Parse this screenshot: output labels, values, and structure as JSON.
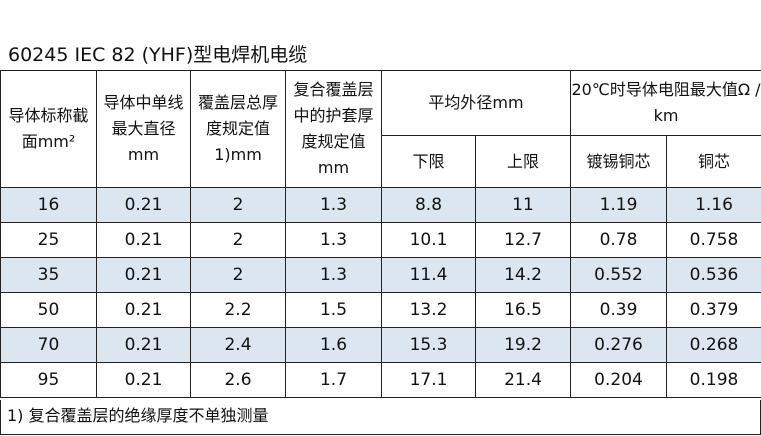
{
  "title": "60245 IEC 82 (YHF)型电焊机电缆",
  "table": {
    "headers": {
      "col1": "导体标称截面mm²",
      "col2": "导体中单线最大直径mm",
      "col3": "覆盖层总厚度规定值1)mm",
      "col4": "复合覆盖层中的护套厚度规定值mm",
      "group1": "平均外径mm",
      "group1_lower": "下限",
      "group1_upper": "上限",
      "group2": "20℃时导体电阻最大值Ω / km",
      "group2_tinned": "镀锡铜芯",
      "group2_copper": "铜芯"
    },
    "rows": [
      [
        "16",
        "0.21",
        "2",
        "1.3",
        "8.8",
        "11",
        "1.19",
        "1.16"
      ],
      [
        "25",
        "0.21",
        "2",
        "1.3",
        "10.1",
        "12.7",
        "0.78",
        "0.758"
      ],
      [
        "35",
        "0.21",
        "2",
        "1.3",
        "11.4",
        "14.2",
        "0.552",
        "0.536"
      ],
      [
        "50",
        "0.21",
        "2.2",
        "1.5",
        "13.2",
        "16.5",
        "0.39",
        "0.379"
      ],
      [
        "70",
        "0.21",
        "2.4",
        "1.6",
        "15.3",
        "19.2",
        "0.276",
        "0.268"
      ],
      [
        "95",
        "0.21",
        "2.6",
        "1.7",
        "17.1",
        "21.4",
        "0.204",
        "0.198"
      ]
    ]
  },
  "footnote": "1) 复合覆盖层的绝缘厚度不单独测量",
  "colors": {
    "shaded_row": "#dce6f1",
    "border": "#222222"
  }
}
